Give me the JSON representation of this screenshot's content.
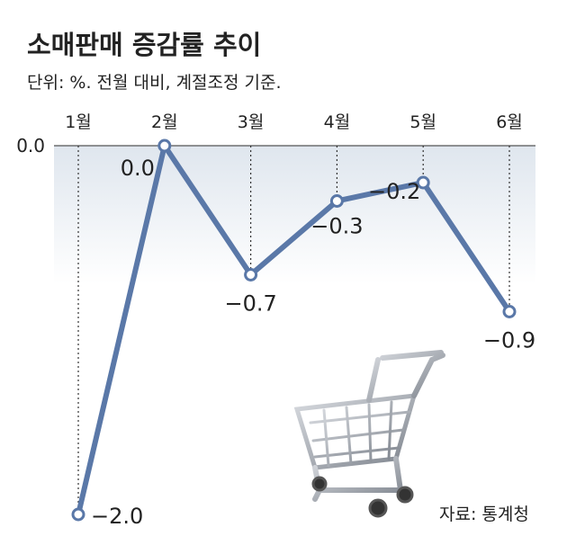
{
  "chart_data": {
    "type": "line",
    "title": "소매판매 증감률 추이",
    "subtitle": "단위: %. 전월 대비, 계절조정 기준.",
    "source": "자료: 통계청",
    "categories": [
      "1월",
      "2월",
      "3월",
      "4월",
      "5월",
      "6월"
    ],
    "values": [
      -2.0,
      0.0,
      -0.7,
      -0.3,
      -0.2,
      -0.9
    ],
    "value_labels": [
      "−2.0",
      "0.0",
      "−0.7",
      "−0.3",
      "−0.2",
      "−0.9"
    ],
    "color": "#5a78a8",
    "ylim": [
      -2.0,
      0.0
    ],
    "yticks": [
      {
        "value": 0.0,
        "label": "0.0"
      }
    ]
  }
}
